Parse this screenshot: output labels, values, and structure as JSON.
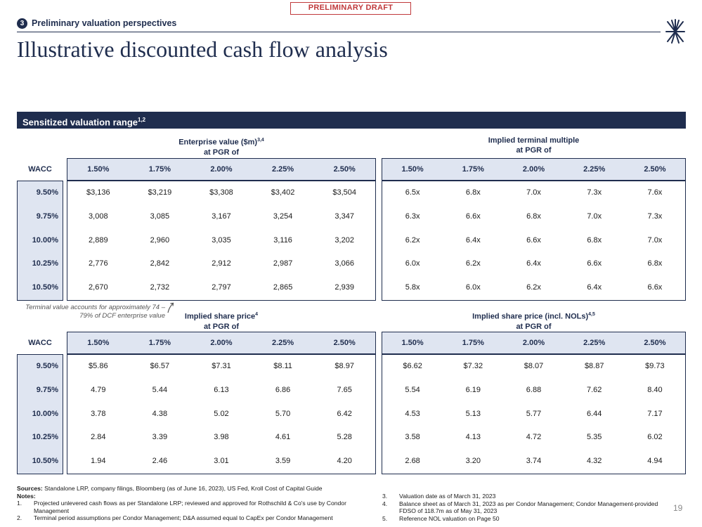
{
  "header": {
    "draft_label": "PRELIMINARY DRAFT",
    "section_number": "3",
    "section_title": "Preliminary valuation perspectives",
    "title": "Illustrative discounted cash flow analysis"
  },
  "band": {
    "label": "Sensitized valuation range",
    "sup": "1,2"
  },
  "wacc_header": "WACC",
  "pgr_labels": [
    "1.50%",
    "1.75%",
    "2.00%",
    "2.25%",
    "2.50%"
  ],
  "wacc_values": [
    "9.50%",
    "9.75%",
    "10.00%",
    "10.25%",
    "10.50%"
  ],
  "tables": {
    "ev": {
      "title": "Enterprise value ($m)",
      "sup": "3,4",
      "subtitle": "at PGR of",
      "rows": [
        [
          "$3,136",
          "$3,219",
          "$3,308",
          "$3,402",
          "$3,504"
        ],
        [
          "3,008",
          "3,085",
          "3,167",
          "3,254",
          "3,347"
        ],
        [
          "2,889",
          "2,960",
          "3,035",
          "3,116",
          "3,202"
        ],
        [
          "2,776",
          "2,842",
          "2,912",
          "2,987",
          "3,066"
        ],
        [
          "2,670",
          "2,732",
          "2,797",
          "2,865",
          "2,939"
        ]
      ]
    },
    "tm": {
      "title": "Implied terminal multiple",
      "sup": "",
      "subtitle": "at PGR of",
      "rows": [
        [
          "6.5x",
          "6.8x",
          "7.0x",
          "7.3x",
          "7.6x"
        ],
        [
          "6.3x",
          "6.6x",
          "6.8x",
          "7.0x",
          "7.3x"
        ],
        [
          "6.2x",
          "6.4x",
          "6.6x",
          "6.8x",
          "7.0x"
        ],
        [
          "6.0x",
          "6.2x",
          "6.4x",
          "6.6x",
          "6.8x"
        ],
        [
          "5.8x",
          "6.0x",
          "6.2x",
          "6.4x",
          "6.6x"
        ]
      ]
    },
    "sp": {
      "title": "Implied share price",
      "sup": "4",
      "subtitle": "at PGR of",
      "rows": [
        [
          "$5.86",
          "$6.57",
          "$7.31",
          "$8.11",
          "$8.97"
        ],
        [
          "4.79",
          "5.44",
          "6.13",
          "6.86",
          "7.65"
        ],
        [
          "3.78",
          "4.38",
          "5.02",
          "5.70",
          "6.42"
        ],
        [
          "2.84",
          "3.39",
          "3.98",
          "4.61",
          "5.28"
        ],
        [
          "1.94",
          "2.46",
          "3.01",
          "3.59",
          "4.20"
        ]
      ]
    },
    "spn": {
      "title": "Implied share price (incl. NOLs)",
      "sup": "4,5",
      "subtitle": "at PGR of",
      "rows": [
        [
          "$6.62",
          "$7.32",
          "$8.07",
          "$8.87",
          "$9.73"
        ],
        [
          "5.54",
          "6.19",
          "6.88",
          "7.62",
          "8.40"
        ],
        [
          "4.53",
          "5.13",
          "5.77",
          "6.44",
          "7.17"
        ],
        [
          "3.58",
          "4.13",
          "4.72",
          "5.35",
          "6.02"
        ],
        [
          "2.68",
          "3.20",
          "3.74",
          "4.32",
          "4.94"
        ]
      ]
    }
  },
  "terminal_note": "Terminal value accounts for approximately 74 – 79% of DCF enterprise value",
  "footnotes": {
    "sources_label": "Sources:",
    "sources_text": "Standalone LRP, company filings, Bloomberg (as of June 16, 2023), US Fed, Kroll Cost of Capital Guide",
    "notes_label": "Notes:",
    "left": [
      {
        "num": "1.",
        "text": "Projected unlevered cash flows as per Standalone LRP; reviewed and approved for Rothschild & Co's use by Condor Management"
      },
      {
        "num": "2.",
        "text": "Terminal period assumptions per Condor Management; D&A assumed equal to CapEx per Condor Management"
      }
    ],
    "right": [
      {
        "num": "3.",
        "text": "Valuation date as of March 31, 2023"
      },
      {
        "num": "4.",
        "text": "Balance sheet as of March 31, 2023 as per Condor Management; Condor Management-provided FDSO of 118.7m as of May 31, 2023"
      },
      {
        "num": "5.",
        "text": "Reference NOL valuation on Page 50"
      }
    ]
  },
  "page_number": "19",
  "colors": {
    "navy": "#1f2d4e",
    "header_fill": "#dfe5f1",
    "draft_red": "#c0393b"
  }
}
